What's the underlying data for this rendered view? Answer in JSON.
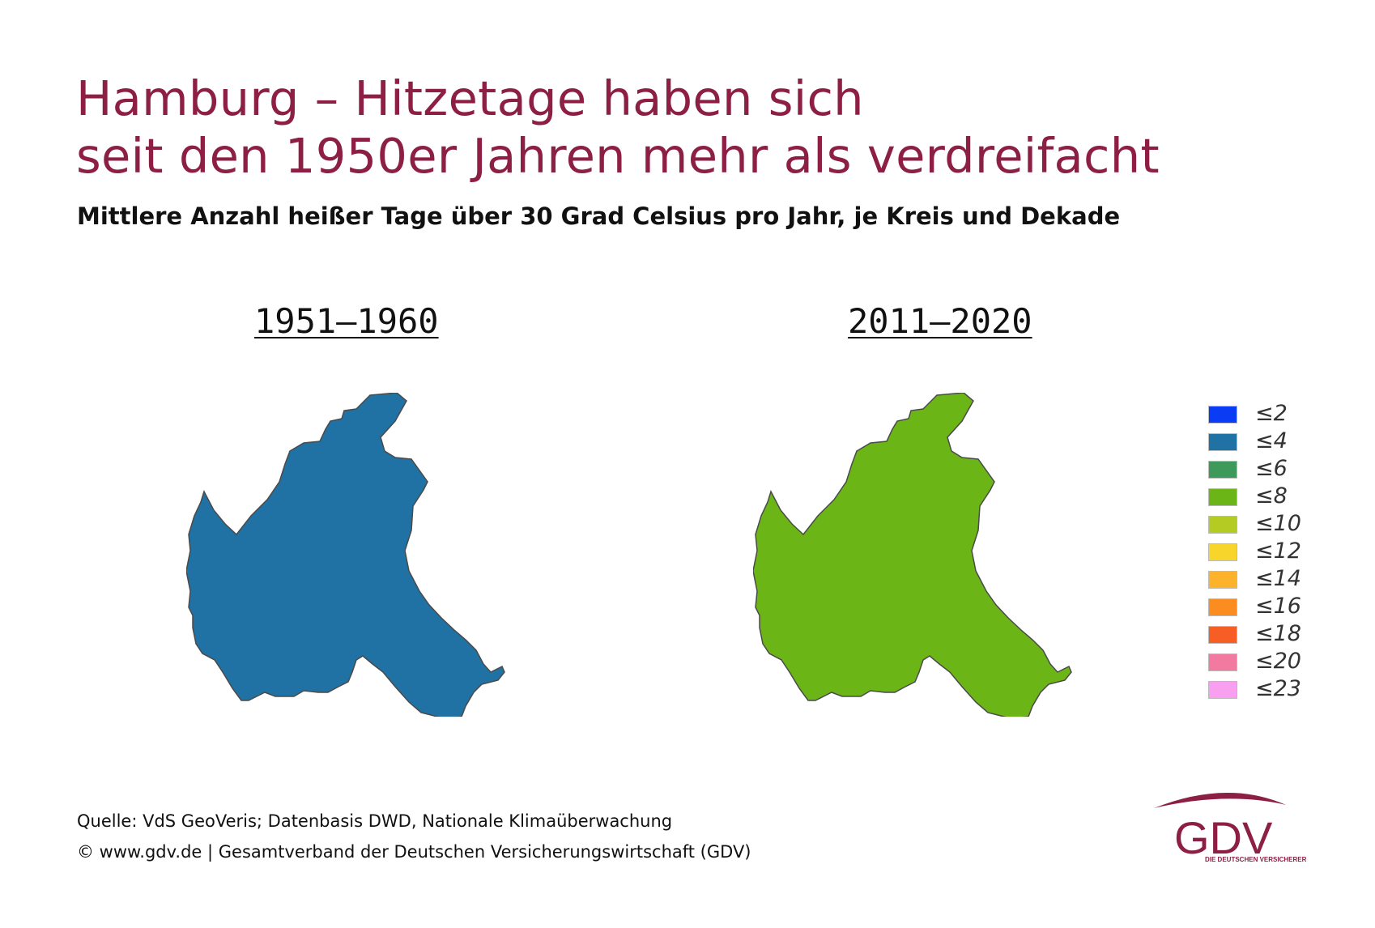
{
  "title_line1": "Hamburg – Hitzetage haben sich",
  "title_line2": "seit den 1950er Jahren mehr als verdreifacht",
  "subtitle": "Mittlere Anzahl heißer Tage über 30 Grad Celsius pro Jahr, je Kreis und Dekade",
  "maps": [
    {
      "decade": "1951–1960",
      "fill": "#1f72a3",
      "class": "≤4"
    },
    {
      "decade": "2011–2020",
      "fill": "#6cb517",
      "class": "≤8"
    }
  ],
  "legend": [
    {
      "label": "≤2",
      "color": "#0a3cf5"
    },
    {
      "label": "≤4",
      "color": "#1f72a3"
    },
    {
      "label": "≤6",
      "color": "#3e9a5a"
    },
    {
      "label": "≤8",
      "color": "#6cb517"
    },
    {
      "label": "≤10",
      "color": "#b3cb22"
    },
    {
      "label": "≤12",
      "color": "#f7d52b"
    },
    {
      "label": "≤14",
      "color": "#fcb32b"
    },
    {
      "label": "≤16",
      "color": "#fb8c1f"
    },
    {
      "label": "≤18",
      "color": "#f65e26"
    },
    {
      "label": "≤20",
      "color": "#f27aa0"
    },
    {
      "label": "≤23",
      "color": "#f8a0ef"
    }
  ],
  "source_line1": "Quelle: VdS GeoVeris; Datenbasis DWD, Nationale Klimaüberwachung",
  "source_line2": "© www.gdv.de | Gesamtverband der Deutschen Versicherungswirtschaft (GDV)",
  "logo": {
    "text": "GDV",
    "tagline": "DIE DEUTSCHEN VERSICHERER",
    "color": "#8c1f43"
  }
}
